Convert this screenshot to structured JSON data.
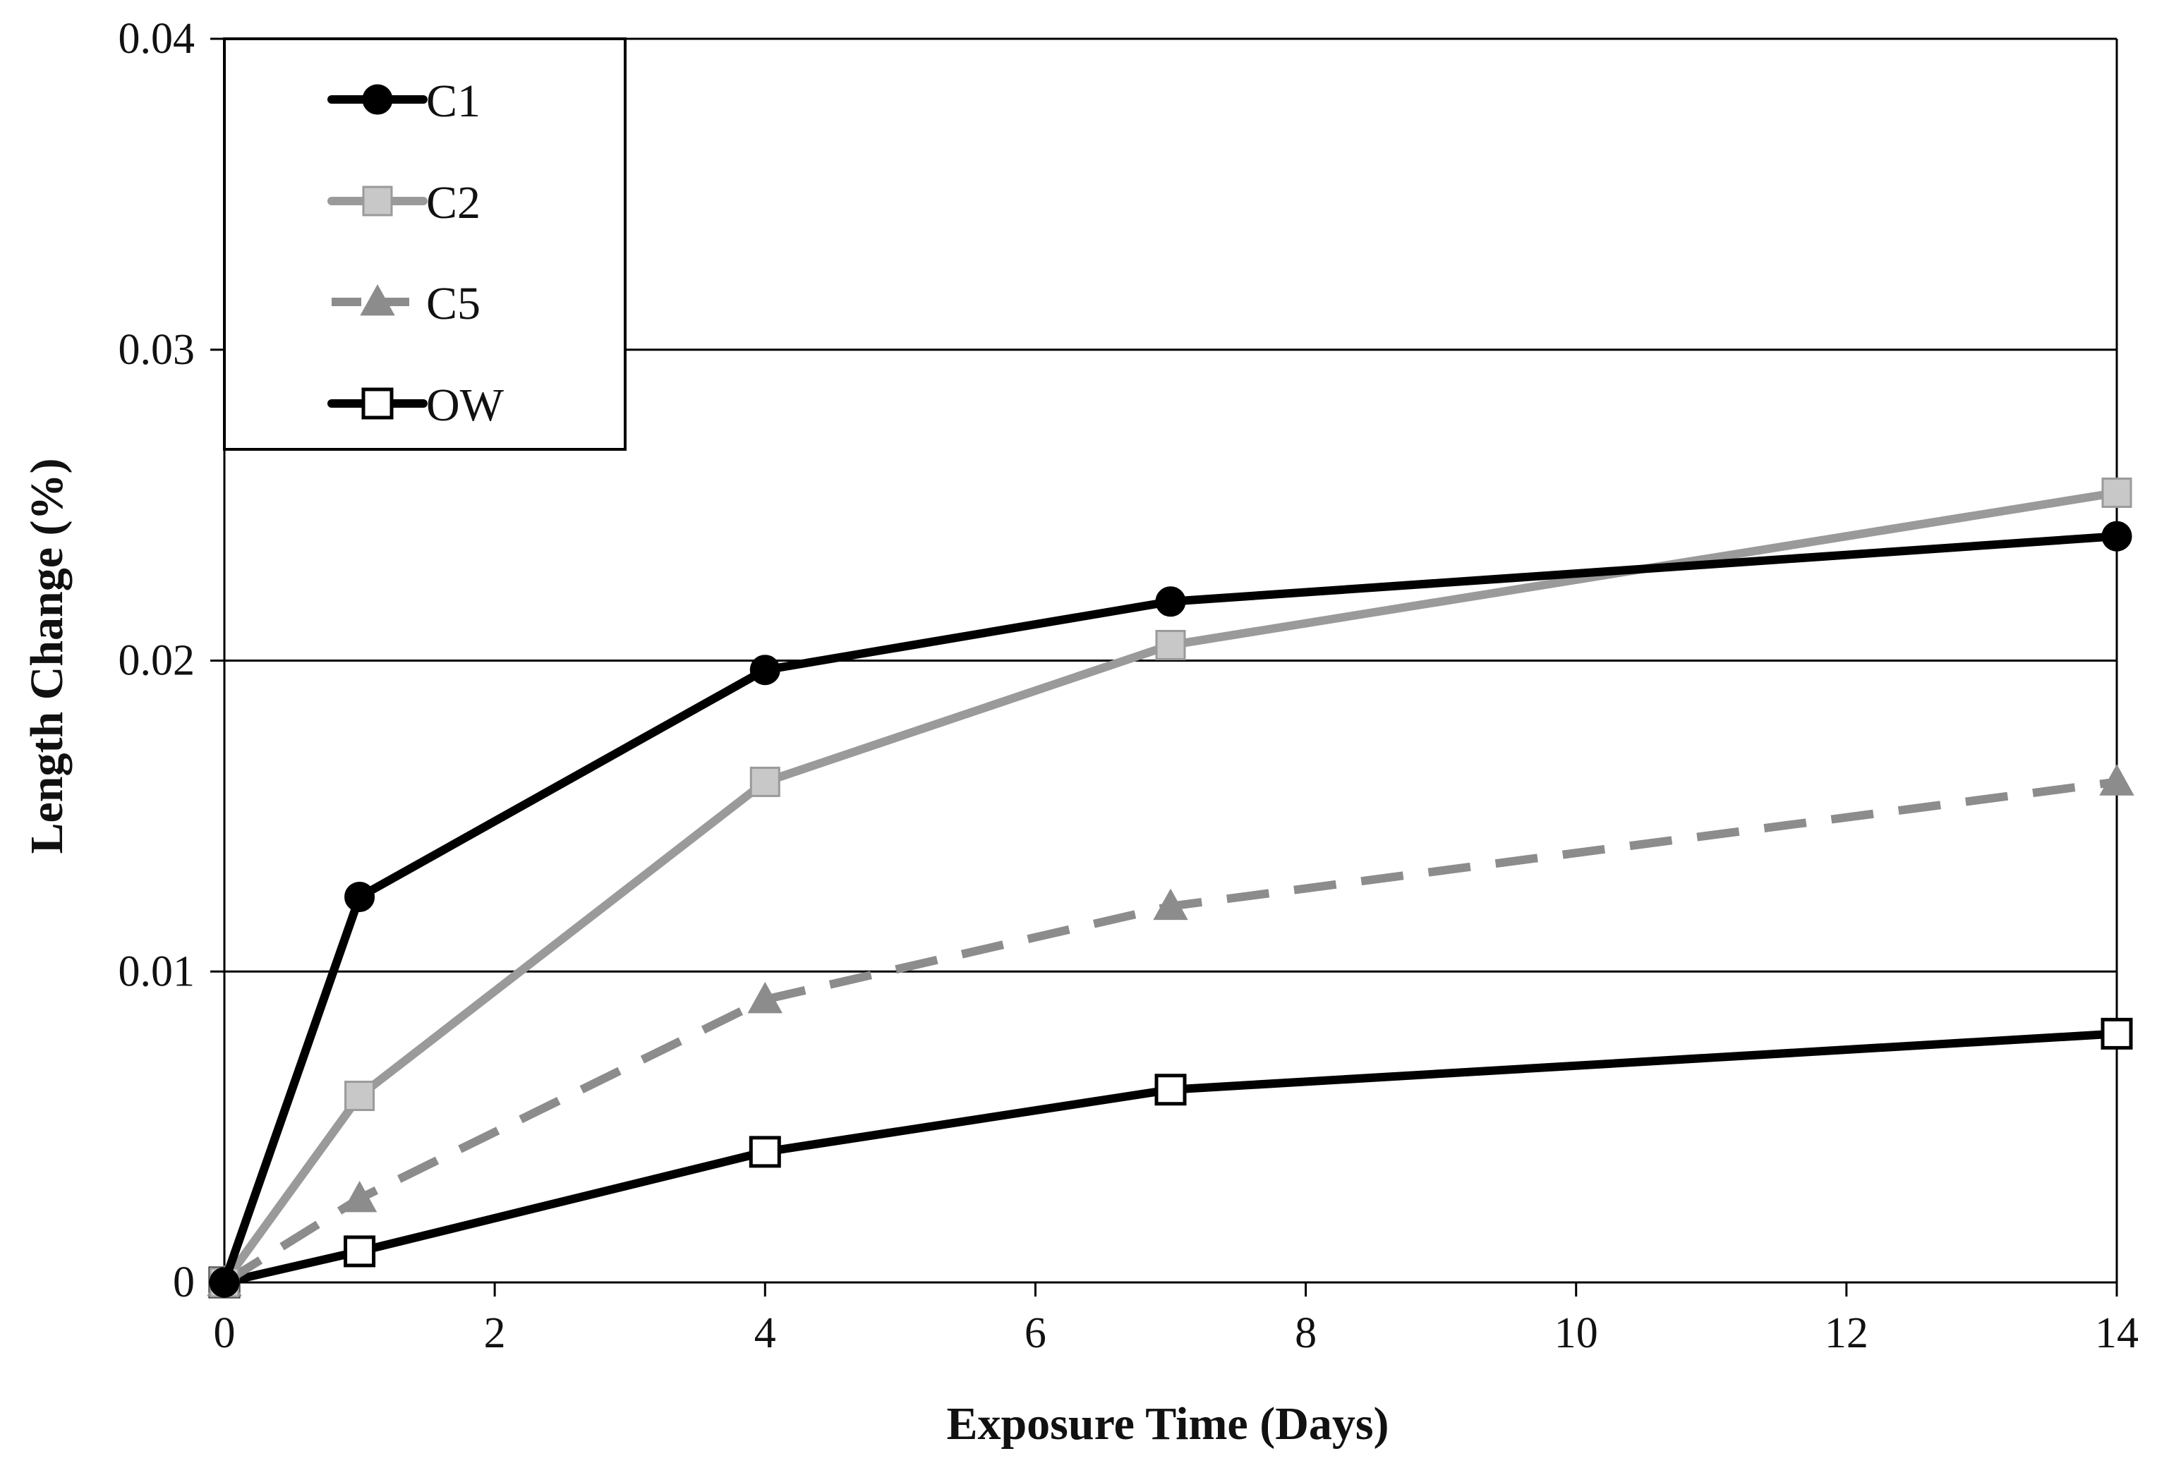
{
  "chart_data": {
    "type": "line",
    "title": "",
    "xlabel": "Exposure Time (Days)",
    "ylabel": "Length Change (%)",
    "xlim": [
      0,
      14
    ],
    "ylim": [
      0,
      0.04
    ],
    "x_ticks": [
      0,
      2,
      4,
      6,
      8,
      10,
      12,
      14
    ],
    "x_tick_labels": [
      "0",
      "2",
      "4",
      "6",
      "8",
      "10",
      "12",
      "14"
    ],
    "y_ticks": [
      0,
      0.01,
      0.02,
      0.03,
      0.04
    ],
    "y_tick_labels": [
      "0",
      "0.01",
      "0.02",
      "0.03",
      "0.04"
    ],
    "grid": "horizontal",
    "legend": "top-left",
    "x": [
      0,
      1,
      4,
      7,
      14
    ],
    "series": [
      {
        "name": "C1",
        "values": [
          0,
          0.0124,
          0.0197,
          0.0219,
          0.024
        ],
        "color": "#000000",
        "marker": "circle-filled",
        "dash": "solid"
      },
      {
        "name": "C2",
        "values": [
          0,
          0.006,
          0.0161,
          0.0205,
          0.0254
        ],
        "color": "#9a9a9a",
        "marker_fill": "#c8c8c8",
        "marker": "square-filled",
        "dash": "solid"
      },
      {
        "name": "C5",
        "values": [
          0,
          0.0027,
          0.0091,
          0.0121,
          0.0161
        ],
        "color": "#8c8c8c",
        "marker": "triangle-filled",
        "dash": "dashed"
      },
      {
        "name": "OW",
        "values": [
          0,
          0.001,
          0.0042,
          0.0062,
          0.008
        ],
        "color": "#000000",
        "marker_fill": "#ffffff",
        "marker": "square-open",
        "dash": "solid"
      }
    ]
  }
}
